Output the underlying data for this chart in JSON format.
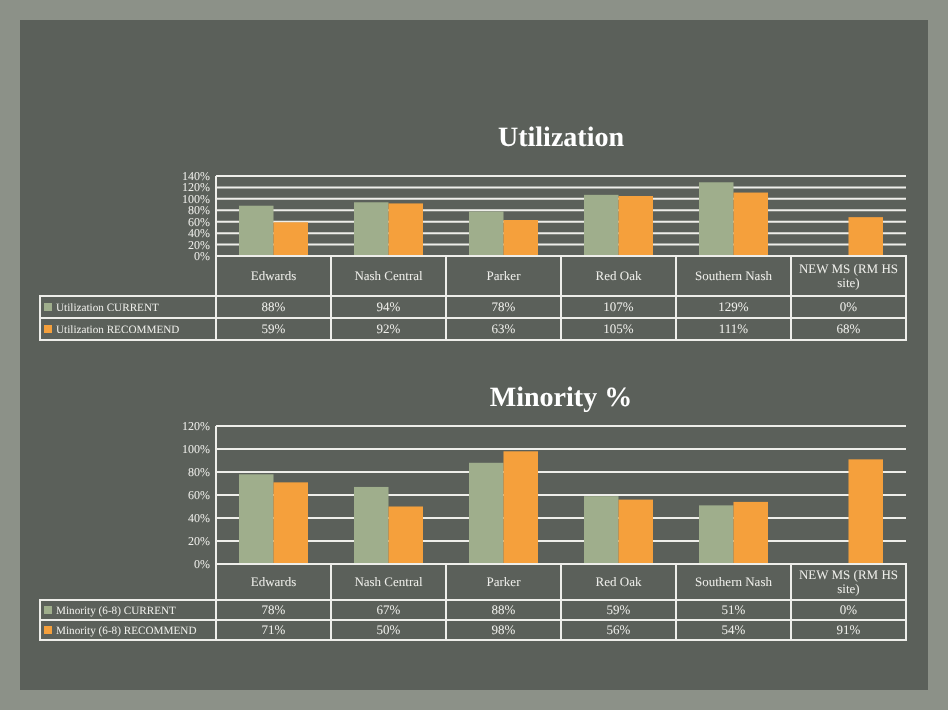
{
  "chart_data": [
    {
      "type": "bar",
      "title": "Utilization",
      "categories": [
        "Edwards",
        "Nash Central",
        "Parker",
        "Red Oak",
        "Southern Nash",
        "NEW MS (RM HS site)"
      ],
      "series": [
        {
          "name": "Utilization CURRENT",
          "color": "#9fae8c",
          "values": [
            88,
            94,
            78,
            107,
            129,
            0
          ],
          "value_labels": [
            "88%",
            "94%",
            "78%",
            "107%",
            "129%",
            "0%"
          ]
        },
        {
          "name": "Utilization RECOMMEND",
          "color": "#f5a03c",
          "values": [
            59,
            92,
            63,
            105,
            111,
            68
          ],
          "value_labels": [
            "59%",
            "92%",
            "63%",
            "105%",
            "111%",
            "68%"
          ]
        }
      ],
      "ylim": [
        0,
        140
      ],
      "yticks": [
        {
          "value": 0,
          "label": "0%"
        },
        {
          "value": 20,
          "label": "20%"
        },
        {
          "value": 40,
          "label": "40%"
        },
        {
          "value": 60,
          "label": "60%"
        },
        {
          "value": 80,
          "label": "80%"
        },
        {
          "value": 100,
          "label": "100%"
        },
        {
          "value": 120,
          "label": "120%"
        },
        {
          "value": 140,
          "label": "140%"
        }
      ],
      "grid": "y",
      "legend": "bottom"
    },
    {
      "type": "bar",
      "title": "Minority %",
      "categories": [
        "Edwards",
        "Nash Central",
        "Parker",
        "Red Oak",
        "Southern Nash",
        "NEW MS (RM HS site)"
      ],
      "series": [
        {
          "name": "Minority (6-8) CURRENT",
          "color": "#9fae8c",
          "values": [
            78,
            67,
            88,
            59,
            51,
            0
          ],
          "value_labels": [
            "78%",
            "67%",
            "88%",
            "59%",
            "51%",
            "0%"
          ]
        },
        {
          "name": "Minority (6-8) RECOMMEND",
          "color": "#f5a03c",
          "values": [
            71,
            50,
            98,
            56,
            54,
            91
          ],
          "value_labels": [
            "71%",
            "50%",
            "98%",
            "56%",
            "54%",
            "91%"
          ]
        }
      ],
      "ylim": [
        0,
        120
      ],
      "yticks": [
        {
          "value": 0,
          "label": "0%"
        },
        {
          "value": 20,
          "label": "20%"
        },
        {
          "value": 40,
          "label": "40%"
        },
        {
          "value": 60,
          "label": "60%"
        },
        {
          "value": 80,
          "label": "80%"
        },
        {
          "value": 100,
          "label": "100%"
        },
        {
          "value": 120,
          "label": "120%"
        }
      ],
      "grid": "y",
      "legend": "bottom"
    }
  ]
}
